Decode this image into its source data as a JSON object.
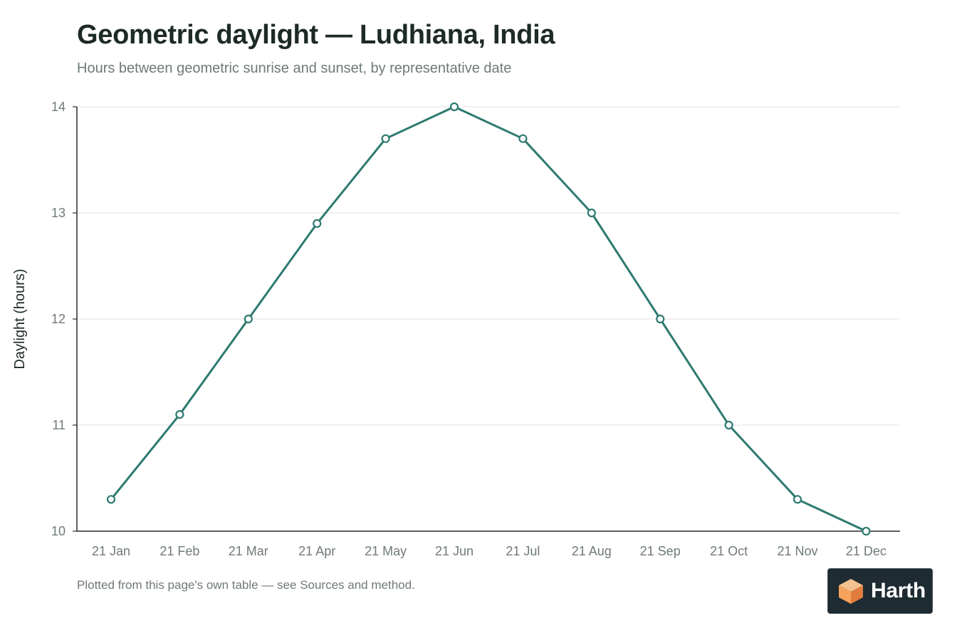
{
  "header": {
    "title": "Geometric daylight — Ludhiana, India",
    "subtitle": "Hours between geometric sunrise and sunset, by representative date"
  },
  "footer": {
    "note": "Plotted from this page's own table — see Sources and method."
  },
  "badge": {
    "logo_icon": "cube-logo-icon",
    "text": "Harth",
    "logo_colors": [
      "#f6a25c",
      "#f4c28f",
      "#e07d3e"
    ]
  },
  "chart_data": {
    "type": "line",
    "title": "",
    "xlabel": "",
    "ylabel": "Daylight (hours)",
    "categories": [
      "21 Jan",
      "21 Feb",
      "21 Mar",
      "21 Apr",
      "21 May",
      "21 Jun",
      "21 Jul",
      "21 Aug",
      "21 Sep",
      "21 Oct",
      "21 Nov",
      "21 Dec"
    ],
    "series": [
      {
        "values": [
          10.3,
          11.1,
          12.0,
          12.9,
          13.7,
          14.0,
          13.7,
          13.0,
          12.0,
          11.0,
          10.3,
          10.0
        ]
      }
    ],
    "ylim": [
      10,
      14
    ],
    "yticks": [
      10,
      11,
      12,
      13,
      14
    ],
    "grid": true,
    "legend": "none",
    "colors": {
      "line": "#2e7a70",
      "marker_fill": "#ffffff",
      "grid": "#e6e8e7",
      "axis": "#2a2f2e",
      "tick_label": "#6f7a77",
      "axis_label": "#1d2a26"
    }
  }
}
